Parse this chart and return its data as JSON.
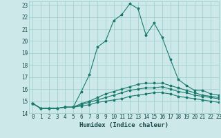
{
  "title": "",
  "xlabel": "Humidex (Indice chaleur)",
  "ylabel": "",
  "xlim": [
    -0.5,
    23
  ],
  "ylim": [
    14,
    23.3
  ],
  "yticks": [
    14,
    15,
    16,
    17,
    18,
    19,
    20,
    21,
    22,
    23
  ],
  "xticks": [
    0,
    1,
    2,
    3,
    4,
    5,
    6,
    7,
    8,
    9,
    10,
    11,
    12,
    13,
    14,
    15,
    16,
    17,
    18,
    19,
    20,
    21,
    22,
    23
  ],
  "background_color": "#cce8e8",
  "grid_color": "#99cccc",
  "line_color": "#1a7a6e",
  "curves": [
    [
      14.8,
      14.4,
      14.4,
      14.4,
      14.5,
      14.5,
      15.8,
      17.2,
      19.5,
      20.0,
      21.7,
      22.2,
      23.1,
      22.7,
      20.5,
      21.5,
      20.3,
      18.5,
      16.8,
      16.3,
      15.9,
      15.9,
      15.6,
      15.5
    ],
    [
      14.8,
      14.4,
      14.4,
      14.4,
      14.5,
      14.5,
      14.8,
      15.0,
      15.3,
      15.6,
      15.8,
      16.0,
      16.2,
      16.4,
      16.5,
      16.5,
      16.5,
      16.3,
      16.1,
      15.9,
      15.7,
      15.5,
      15.4,
      15.3
    ],
    [
      14.8,
      14.4,
      14.4,
      14.4,
      14.5,
      14.5,
      14.7,
      14.9,
      15.1,
      15.3,
      15.5,
      15.7,
      15.9,
      16.0,
      16.1,
      16.1,
      16.2,
      16.0,
      15.8,
      15.7,
      15.5,
      15.4,
      15.3,
      15.2
    ],
    [
      14.8,
      14.4,
      14.4,
      14.4,
      14.5,
      14.5,
      14.6,
      14.7,
      14.9,
      15.0,
      15.1,
      15.2,
      15.4,
      15.5,
      15.6,
      15.7,
      15.7,
      15.6,
      15.4,
      15.3,
      15.2,
      15.1,
      15.0,
      14.9
    ]
  ],
  "tick_fontsize": 5.5,
  "xlabel_fontsize": 6.5,
  "marker_size": 2.5,
  "linewidth": 0.8
}
